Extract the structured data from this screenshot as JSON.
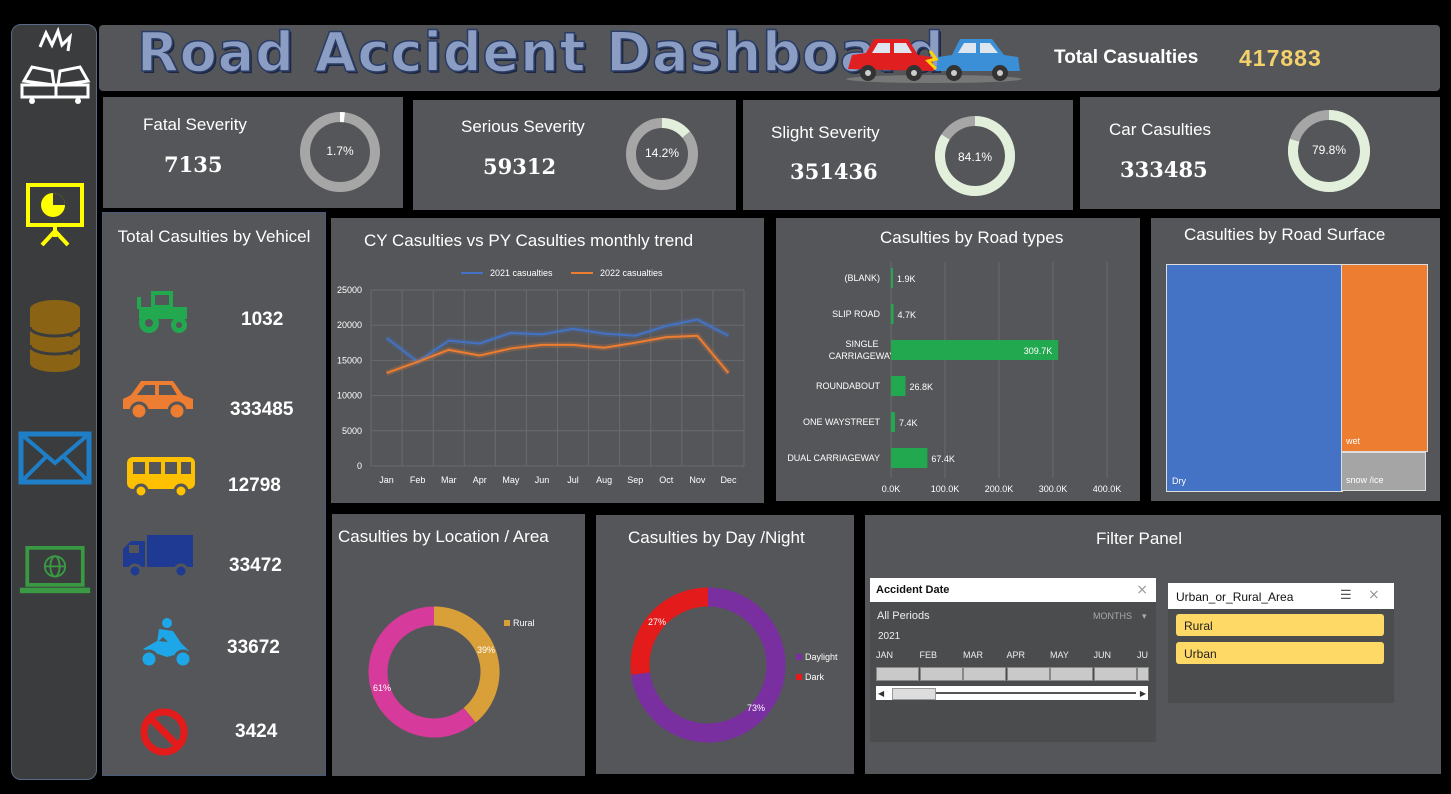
{
  "header": {
    "title": "Road Accident Dashboard",
    "total_label": "Total Casualties",
    "total_value": "417883"
  },
  "sidebar": {
    "items": [
      "crash-icon",
      "presentation-icon",
      "database-icon",
      "mail-icon",
      "web-icon"
    ]
  },
  "kpis": [
    {
      "label": "Fatal Severity",
      "value": "7135",
      "pct": "1.7%",
      "fraction": 0.017
    },
    {
      "label": "Serious Severity",
      "value": "59312",
      "pct": "14.2%",
      "fraction": 0.142
    },
    {
      "label": "Slight Severity",
      "value": "351436",
      "pct": "84.1%",
      "fraction": 0.841
    },
    {
      "label": "Car Casulties",
      "value": "333485",
      "pct": "79.8%",
      "fraction": 0.798
    }
  ],
  "vehicle": {
    "title": "Total Casulties by Vehicel",
    "items": [
      {
        "icon": "tractor-icon",
        "value": "1032",
        "color": "#22a94f"
      },
      {
        "icon": "car-icon",
        "value": "333485",
        "color": "#ed7d31"
      },
      {
        "icon": "bus-icon",
        "value": "12798",
        "color": "#ffc000"
      },
      {
        "icon": "truck-icon",
        "value": "33472",
        "color": "#1f3a93"
      },
      {
        "icon": "motorcycle-icon",
        "value": "33672",
        "color": "#1ea7e8"
      },
      {
        "icon": "no-entry-icon",
        "value": "3424",
        "color": "#e31b1b"
      }
    ]
  },
  "trend": {
    "title": "CY Casulties vs PY Casulties monthly trend"
  },
  "road_types": {
    "title": "Casulties by Road types"
  },
  "surface": {
    "title": "Casulties by Road Surface"
  },
  "location": {
    "title": "Casulties by Location / Area"
  },
  "daynight": {
    "title": "Casulties by Day /Night"
  },
  "filter": {
    "title": "Filter Panel",
    "date": {
      "label": "Accident Date",
      "period": "All Periods",
      "unit": "MONTHS",
      "year": "2021",
      "months": [
        "JAN",
        "FEB",
        "MAR",
        "APR",
        "MAY",
        "JUN",
        "JU"
      ]
    },
    "area": {
      "label": "Urban_or_Rural_Area",
      "options": [
        "Rural",
        "Urban"
      ]
    }
  },
  "chart_data": [
    {
      "type": "line",
      "title": "CY Casulties vs PY Casulties monthly trend",
      "categories": [
        "Jan",
        "Feb",
        "Mar",
        "Apr",
        "May",
        "Jun",
        "Jul",
        "Aug",
        "Sep",
        "Oct",
        "Nov",
        "Dec"
      ],
      "series": [
        {
          "name": "2021 casualties",
          "color": "#4472c4",
          "values": [
            18200,
            14800,
            17800,
            17400,
            18900,
            18700,
            19500,
            18800,
            18500,
            19900,
            20800,
            18500
          ]
        },
        {
          "name": "2022 casualties",
          "color": "#ed7d31",
          "values": [
            13200,
            14800,
            16500,
            15700,
            16700,
            17200,
            17200,
            16800,
            17500,
            18300,
            18500,
            13200
          ]
        }
      ],
      "ylim": [
        0,
        25000
      ],
      "yticks": [
        "0",
        "5000",
        "10000",
        "15000",
        "20000",
        "25000"
      ],
      "grid": true,
      "legend": "top"
    },
    {
      "type": "bar",
      "orientation": "horizontal",
      "title": "Casulties by Road types",
      "categories": [
        "(BLANK)",
        "SLIP ROAD",
        "SINGLE CARRIAGEWAY",
        "ROUNDABOUT",
        "ONE WAYSTREET",
        "DUAL CARRIAGEWAY"
      ],
      "values": [
        1900,
        4700,
        309700,
        26800,
        7400,
        67400
      ],
      "labels": [
        "1.9K",
        "4.7K",
        "309.7K",
        "26.8K",
        "7.4K",
        "67.4K"
      ],
      "xticks": [
        "0.0K",
        "100.0K",
        "200.0K",
        "300.0K",
        "400.0K"
      ],
      "xlim": [
        0,
        400000
      ],
      "color": "#22a94f"
    },
    {
      "type": "treemap",
      "title": "Casulties by Road Surface",
      "categories": [
        "Dry",
        "wet",
        "snow /ice"
      ],
      "colors": [
        "#4472c4",
        "#ed7d31",
        "#a5a5a5"
      ]
    },
    {
      "type": "pie",
      "variant": "donut",
      "title": "Casulties by Location / Area",
      "categories": [
        "Rural",
        "Urban"
      ],
      "values": [
        39,
        61
      ],
      "labels": [
        "39%",
        "61%"
      ],
      "colors": [
        "#d9a03a",
        "#d63a9a"
      ],
      "legend": "right",
      "legend_entries": [
        "Rural"
      ]
    },
    {
      "type": "pie",
      "variant": "donut",
      "title": "Casulties by Day /Night",
      "categories": [
        "Daylight",
        "Dark"
      ],
      "values": [
        73,
        27
      ],
      "labels": [
        "73%",
        "27%"
      ],
      "colors": [
        "#7a2fa0",
        "#e31b1b"
      ],
      "legend": "right"
    }
  ]
}
